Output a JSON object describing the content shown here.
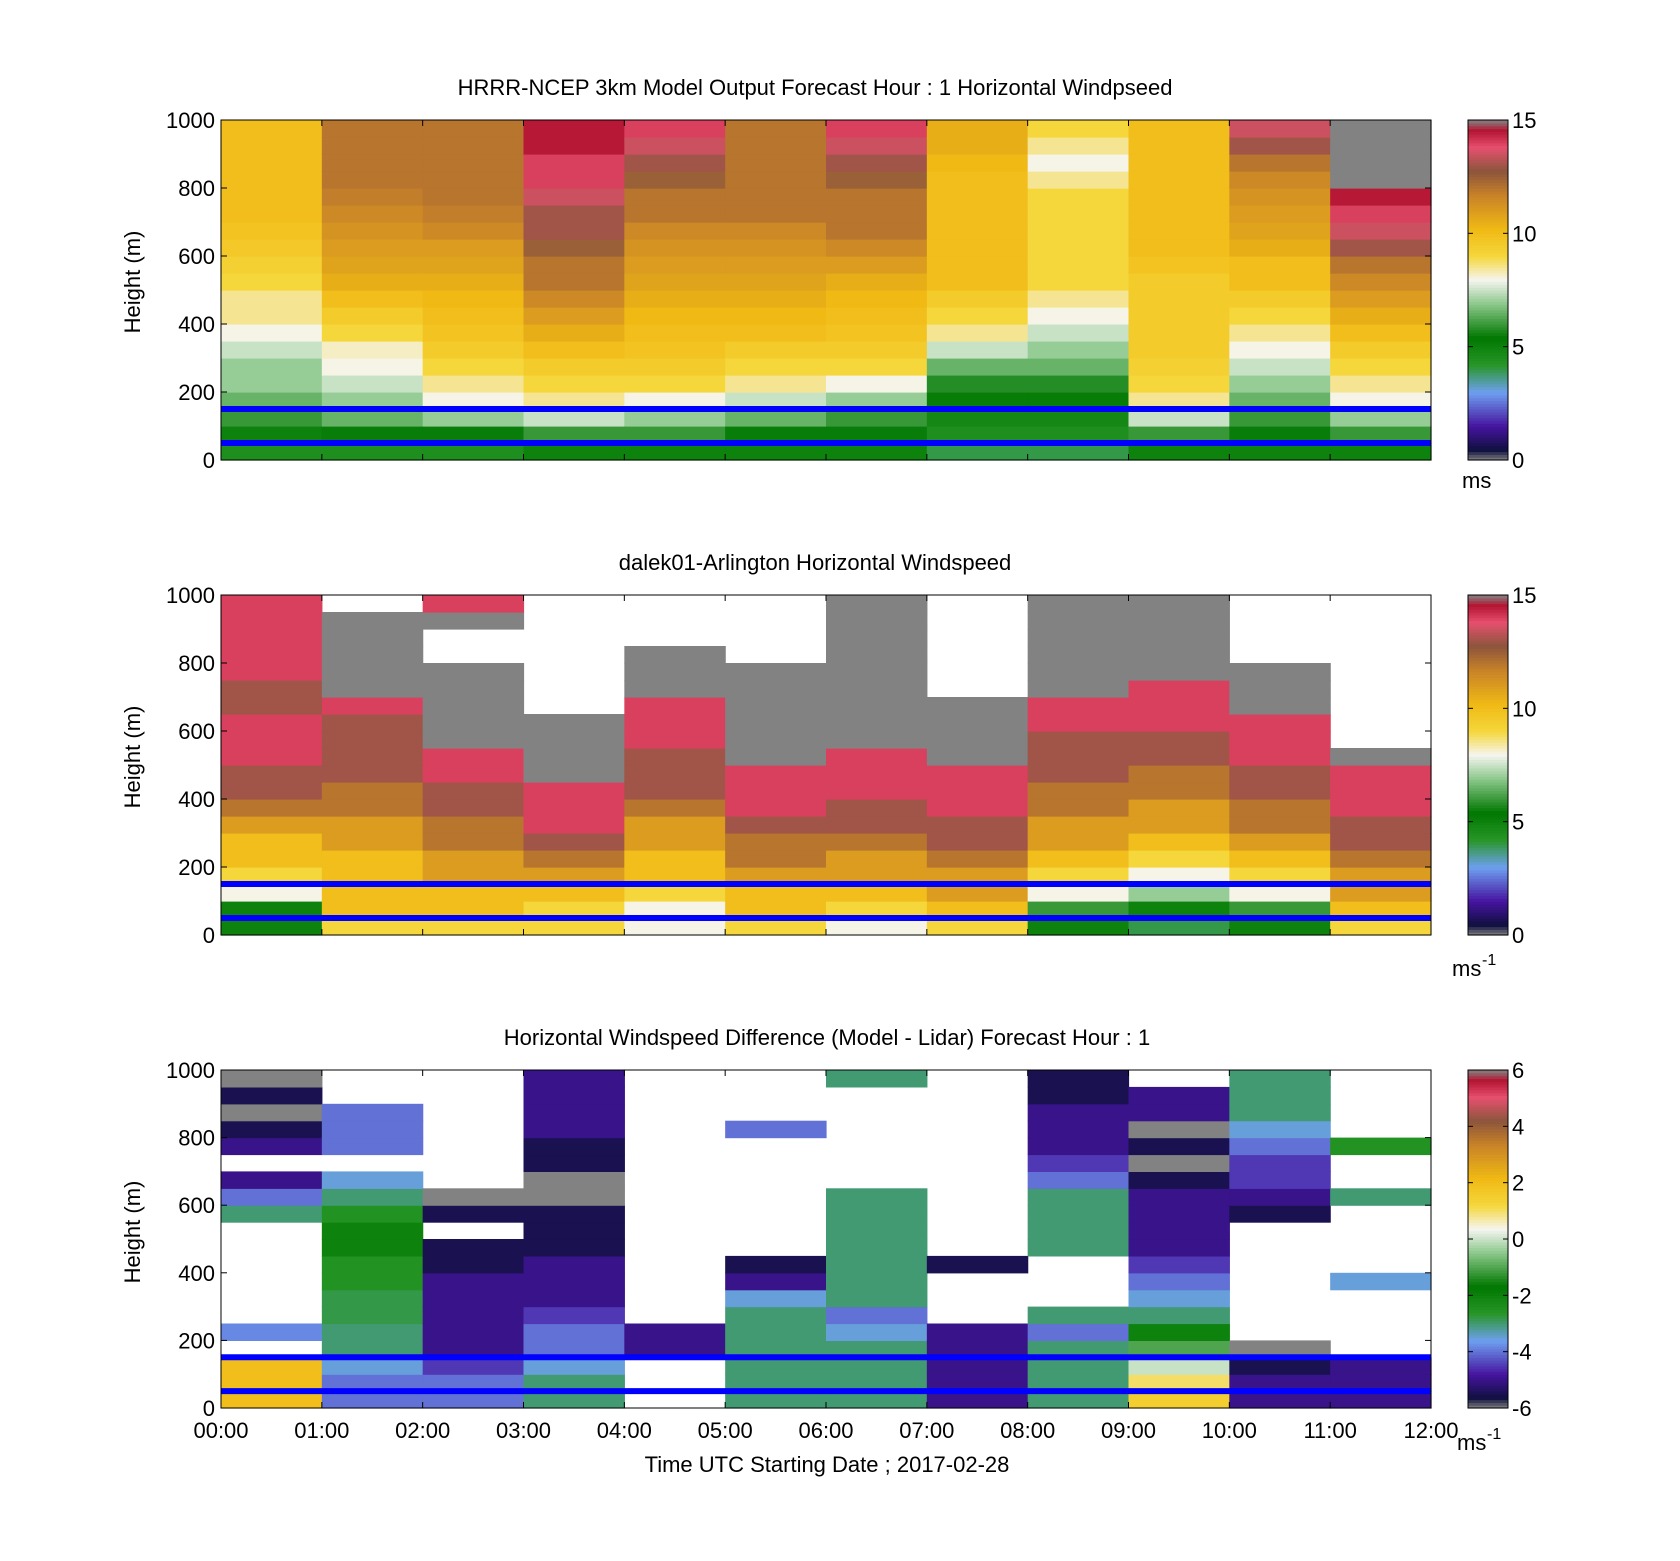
{
  "figure": {
    "xlabel": "Time UTC  Starting Date ; 2017-02-28",
    "x_ticks": [
      "00:00",
      "01:00",
      "02:00",
      "03:00",
      "04:00",
      "05:00",
      "06:00",
      "07:00",
      "08:00",
      "09:00",
      "10:00",
      "11:00",
      "12:00"
    ]
  },
  "chart_data": [
    {
      "type": "heatmap",
      "title": "HRRR-NCEP 3km Model Output   Forecast Hour : 1 Horizontal Windpseed",
      "ylabel": "Height (m)",
      "xlim": [
        0,
        12
      ],
      "ylim": [
        0,
        1000
      ],
      "y_ticks": [
        "0",
        "200",
        "400",
        "600",
        "800",
        "1000"
      ],
      "colorbar": {
        "range": [
          0,
          15
        ],
        "ticks": [
          "0",
          "5",
          "10",
          "15"
        ],
        "unit": "ms"
      },
      "reference_lines_height_m": [
        50,
        150
      ],
      "reference_line_color": "#0000ff",
      "x_hours": [
        0,
        1,
        2,
        3,
        4,
        5,
        6,
        7,
        8,
        9,
        10,
        11
      ],
      "heights_m": [
        25,
        75,
        125,
        175,
        225,
        275,
        325,
        375,
        425,
        475,
        525,
        575,
        625,
        675,
        725,
        775,
        825,
        875,
        925,
        975
      ],
      "values": [
        [
          4.5,
          5,
          6,
          6.5,
          7,
          7,
          7.5,
          8,
          8.5,
          8.5,
          9,
          9.3,
          9.6,
          9.8,
          10,
          10,
          10,
          10,
          10,
          10
        ],
        [
          4.5,
          5.5,
          6.5,
          7,
          7.5,
          8,
          8.2,
          9,
          9.5,
          10,
          10.5,
          10.8,
          11,
          11.2,
          11.5,
          11.8,
          12,
          12,
          12,
          12
        ],
        [
          4.5,
          5.5,
          7,
          8,
          8.5,
          9,
          9.5,
          9.8,
          10,
          10.2,
          10.5,
          10.8,
          11,
          11.5,
          11.8,
          12,
          12,
          12,
          12,
          12
        ],
        [
          5,
          6,
          7.5,
          8.5,
          9,
          9.5,
          10,
          10.5,
          11,
          11.5,
          12,
          12,
          12.5,
          13,
          13,
          13.5,
          14,
          14,
          14.5,
          14.5
        ],
        [
          5,
          6,
          7,
          8,
          9,
          9.5,
          9.8,
          10,
          10.2,
          10.5,
          10.8,
          11,
          11.2,
          11.5,
          12,
          12,
          12.5,
          13,
          13.5,
          14
        ],
        [
          5,
          5.5,
          6.5,
          7.5,
          8.5,
          9,
          9.5,
          10,
          10.2,
          10.5,
          10.8,
          11,
          11.2,
          11.5,
          12,
          12,
          12,
          12,
          12,
          12
        ],
        [
          5,
          5.5,
          6,
          7,
          8,
          9,
          9.5,
          9.8,
          10,
          10.2,
          10.5,
          11,
          11.5,
          12,
          12,
          12,
          12.5,
          13,
          13.5,
          14
        ],
        [
          4,
          4.5,
          4.8,
          5.2,
          5.8,
          6.5,
          7.5,
          8.5,
          9,
          9.5,
          10,
          10,
          10,
          10,
          10,
          10,
          10,
          10.2,
          10.5,
          10.5
        ],
        [
          4,
          4.5,
          4.8,
          5.2,
          5.8,
          6.5,
          7,
          7.5,
          8,
          8.5,
          9,
          9,
          9,
          9,
          9,
          9,
          8.5,
          8,
          8.5,
          9
        ],
        [
          5,
          6,
          7.5,
          8.5,
          9,
          9.3,
          9.5,
          9.5,
          9.5,
          9.5,
          9.5,
          9.8,
          10,
          10,
          10,
          10,
          10,
          10,
          10,
          10
        ],
        [
          5,
          5.5,
          6,
          6.5,
          7,
          7.5,
          8,
          8.5,
          9,
          9.5,
          10,
          10,
          10.5,
          10.8,
          11,
          11.2,
          11.5,
          12,
          13,
          13.5
        ],
        [
          5,
          6,
          7,
          8,
          8.5,
          9,
          9.5,
          10,
          10.5,
          11,
          11.5,
          12,
          13,
          13.5,
          14,
          14.5,
          15,
          15,
          15,
          15
        ]
      ]
    },
    {
      "type": "heatmap",
      "title": "dalek01-Arlington  Horizontal Windspeed",
      "ylabel": "Height (m)",
      "xlim": [
        0,
        12
      ],
      "ylim": [
        0,
        1000
      ],
      "y_ticks": [
        "0",
        "200",
        "400",
        "600",
        "800",
        "1000"
      ],
      "colorbar": {
        "range": [
          0,
          15
        ],
        "ticks": [
          "0",
          "5",
          "10",
          "15"
        ],
        "unit": "ms-1"
      },
      "reference_lines_height_m": [
        50,
        150
      ],
      "reference_line_color": "#0000ff",
      "x_hours": [
        0,
        1,
        2,
        3,
        4,
        5,
        6,
        7,
        8,
        9,
        10,
        11
      ],
      "heights_m": [
        25,
        75,
        125,
        175,
        225,
        275,
        325,
        375,
        425,
        475,
        525,
        575,
        625,
        675,
        725,
        775,
        825,
        875,
        925,
        975
      ],
      "values": [
        [
          5,
          5,
          8,
          9,
          10,
          10,
          11,
          12,
          13,
          13,
          14,
          14,
          14,
          13,
          13,
          14,
          14,
          14,
          14,
          14
        ],
        [
          9,
          10,
          10,
          10,
          10,
          11,
          11,
          12,
          12,
          13,
          13,
          13,
          13,
          14,
          15,
          15,
          15,
          15,
          15,
          null
        ],
        [
          9,
          10,
          10,
          11,
          11,
          12,
          12,
          13,
          13,
          14,
          14,
          15,
          15,
          15,
          15,
          15,
          null,
          null,
          15,
          14
        ],
        [
          9,
          9,
          10,
          11,
          12,
          13,
          14,
          14,
          14,
          15,
          15,
          15,
          15,
          null,
          null,
          null,
          null,
          null,
          null,
          null
        ],
        [
          8,
          8,
          9,
          10,
          10,
          11,
          11,
          12,
          13,
          13,
          13,
          14,
          14,
          14,
          15,
          15,
          15,
          null,
          null,
          null
        ],
        [
          9,
          10,
          10,
          11,
          12,
          12,
          13,
          14,
          14,
          14,
          15,
          15,
          15,
          15,
          15,
          15,
          null,
          null,
          null,
          null
        ],
        [
          8,
          9,
          10,
          11,
          11,
          12,
          13,
          13,
          14,
          14,
          14,
          15,
          15,
          15,
          15,
          15,
          15,
          15,
          15,
          15
        ],
        [
          9,
          10,
          11,
          11,
          12,
          13,
          13,
          14,
          14,
          14,
          15,
          15,
          15,
          15,
          null,
          null,
          null,
          null,
          null,
          null
        ],
        [
          5,
          6,
          8,
          9,
          10,
          11,
          11,
          12,
          12,
          13,
          13,
          13,
          14,
          14,
          15,
          15,
          15,
          15,
          15,
          15
        ],
        [
          4,
          5,
          7,
          8,
          9,
          10,
          11,
          11,
          12,
          12,
          13,
          13,
          14,
          14,
          14,
          15,
          15,
          15,
          15,
          15
        ],
        [
          5,
          6,
          8,
          9,
          10,
          11,
          12,
          12,
          13,
          13,
          14,
          14,
          14,
          15,
          15,
          15,
          null,
          null,
          null,
          null
        ],
        [
          9,
          10,
          11,
          11,
          12,
          13,
          13,
          14,
          14,
          14,
          15,
          null,
          null,
          null,
          null,
          null,
          null,
          null,
          null,
          null
        ]
      ]
    },
    {
      "type": "heatmap",
      "title": "Horizontal Windspeed Difference (Model - Lidar) Forecast Hour : 1",
      "ylabel": "Height (m)",
      "xlim": [
        0,
        12
      ],
      "ylim": [
        0,
        1000
      ],
      "y_ticks": [
        "0",
        "200",
        "400",
        "600",
        "800",
        "1000"
      ],
      "colorbar": {
        "range": [
          -6,
          6
        ],
        "ticks": [
          "-6",
          "-4",
          "-2",
          "0",
          "2",
          "4",
          "6"
        ],
        "unit": "ms-1"
      },
      "reference_lines_height_m": [
        50,
        150
      ],
      "reference_line_color": "#0000ff",
      "x_hours": [
        0,
        1,
        2,
        3,
        4,
        5,
        6,
        7,
        8,
        9,
        10,
        11
      ],
      "heights_m": [
        25,
        75,
        125,
        175,
        225,
        275,
        325,
        375,
        425,
        475,
        525,
        575,
        625,
        675,
        725,
        775,
        825,
        875,
        925,
        975
      ],
      "values": [
        [
          2,
          2,
          2,
          null,
          -3.8,
          null,
          null,
          null,
          null,
          null,
          null,
          -3,
          -4,
          -5,
          null,
          -5,
          -5.5,
          -6,
          -5.5,
          -6
        ],
        [
          -4,
          -4,
          -3.5,
          -3,
          -3,
          -2.8,
          -2.8,
          -2.5,
          -2.5,
          -2,
          -2,
          -2.5,
          -3,
          -3.5,
          null,
          -4,
          -4,
          -4,
          null,
          null
        ],
        [
          -4,
          -4,
          -4.5,
          -5,
          -5,
          -5,
          -5,
          -5,
          -5.5,
          -5.5,
          null,
          -5.5,
          -6,
          null,
          null,
          null,
          null,
          null,
          null,
          null
        ],
        [
          -3,
          -3,
          -3.5,
          -4,
          -4,
          -4.5,
          -5,
          -5,
          -5,
          -5.5,
          -5.5,
          -5.5,
          -6,
          -6,
          -5.5,
          -5.5,
          -5,
          -5,
          -5,
          -5
        ],
        [
          null,
          null,
          null,
          -5,
          -5,
          null,
          null,
          null,
          null,
          null,
          null,
          null,
          null,
          null,
          null,
          null,
          null,
          null,
          null,
          null
        ],
        [
          -3,
          -3,
          -3,
          -3,
          -3,
          -3,
          -3.5,
          -5,
          -5.5,
          null,
          null,
          null,
          null,
          null,
          null,
          null,
          -4,
          null,
          null,
          null
        ],
        [
          -3,
          -3,
          -3,
          -3,
          -3.5,
          -4,
          -3,
          -3,
          -3,
          -3,
          -3,
          -3,
          -3,
          null,
          null,
          null,
          null,
          null,
          null,
          -3
        ],
        [
          -5,
          -5,
          -5,
          -5,
          -5,
          null,
          null,
          null,
          -5.5,
          null,
          null,
          null,
          null,
          null,
          null,
          null,
          null,
          null,
          null,
          null
        ],
        [
          -3,
          -3,
          -3,
          -3,
          -4,
          -3,
          null,
          null,
          null,
          -3,
          -3,
          -3,
          -3,
          -4,
          -4.5,
          -5,
          -5,
          -5,
          -5.5,
          -5.5
        ],
        [
          1.5,
          1,
          0,
          -1,
          -2,
          -3,
          -3.5,
          -4,
          -4.5,
          -5,
          -5,
          -5,
          -5,
          -5.5,
          -6,
          -5.5,
          -6,
          -5,
          -5,
          null
        ],
        [
          -5,
          -5,
          -5.5,
          -6,
          null,
          null,
          null,
          null,
          null,
          null,
          null,
          -5.5,
          -5,
          -4.5,
          -4.5,
          -4,
          -3.5,
          -3,
          -3,
          -3
        ],
        [
          -5,
          -5,
          -5,
          null,
          null,
          null,
          null,
          -3.5,
          null,
          null,
          null,
          null,
          -3,
          null,
          null,
          -2.5,
          null,
          null,
          null,
          null
        ]
      ]
    }
  ]
}
